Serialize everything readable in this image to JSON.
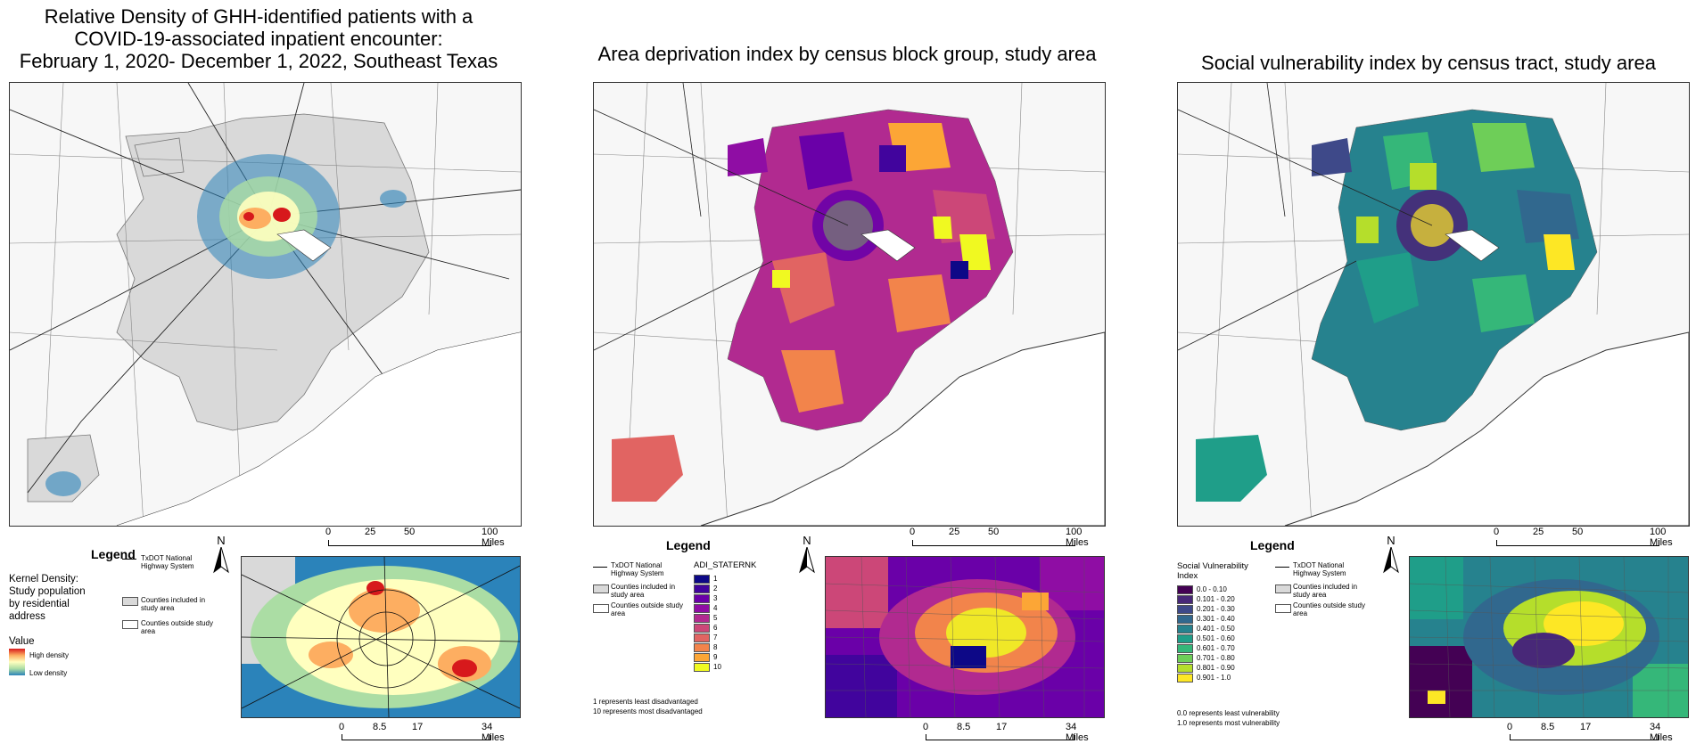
{
  "panels": {
    "density": {
      "title": "Relative Density of GHH-identified patients with a\nCOVID-19-associated inpatient encounter:\nFebruary 1, 2020- December 1, 2022, Southeast Texas",
      "legend_title": "Legend",
      "kd_label": "Kernel Density:\nStudy population\nby residential\naddress",
      "value_label": "Value",
      "high_label": "High density",
      "low_label": "Low density",
      "hw_label": "TxDOT National\nHighway System",
      "included_label": "Counties included in\nstudy area",
      "outside_label": "Counties outside study\narea"
    },
    "adi": {
      "title": "Area deprivation index by census block group, study area",
      "legend_title": "Legend",
      "hw_label": "TxDOT National\nHighway System",
      "included_label": "Counties included in\nstudy area",
      "outside_label": "Counties outside study\narea",
      "field_label": "ADI_STATERNK",
      "classes": [
        "1",
        "2",
        "3",
        "4",
        "5",
        "6",
        "7",
        "8",
        "9",
        "10"
      ],
      "note_1": "1 represents least disadvantaged",
      "note_2": "10 represents most disadvantaged"
    },
    "svi": {
      "title": "Social vulnerability index by census tract, study area",
      "legend_title": "Legend",
      "field_label": "Social Vulnerability\nIndex",
      "classes": [
        "0.0 - 0.10",
        "0.101 - 0.20",
        "0.201 - 0.30",
        "0.301 - 0.40",
        "0.401 - 0.50",
        "0.501 - 0.60",
        "0.601 - 0.70",
        "0.701 - 0.80",
        "0.801 - 0.90",
        "0.901 - 1.0"
      ],
      "hw_label": "TxDOT National\nHighway System",
      "included_label": "Counties included in\nstudy area",
      "outside_label": "Counties outside study\narea",
      "note_1": "0.0 represents least vulnerability",
      "note_2": "1.0 represents most vulnerability"
    }
  },
  "scale_main": {
    "ticks": [
      "0",
      "25",
      "50",
      "100 Miles"
    ]
  },
  "scale_inset": {
    "ticks": [
      "0",
      "8.5",
      "17",
      "34 Miles"
    ]
  },
  "north": "N",
  "colors": {
    "included": "#d9d9d9",
    "outside": "#f7f7f7",
    "adi": [
      "#0d0887",
      "#41049d",
      "#6a00a8",
      "#8f0da4",
      "#b12a90",
      "#cc4778",
      "#e16462",
      "#f2844b",
      "#fca636",
      "#f0f921"
    ],
    "svi": [
      "#440154",
      "#482878",
      "#3e4989",
      "#31688e",
      "#26828e",
      "#1f9e89",
      "#35b779",
      "#6ece58",
      "#b5de2b",
      "#fde725"
    ],
    "kd": [
      "#2b83ba",
      "#abdda4",
      "#ffffbf",
      "#fdae61",
      "#d7191c"
    ]
  }
}
